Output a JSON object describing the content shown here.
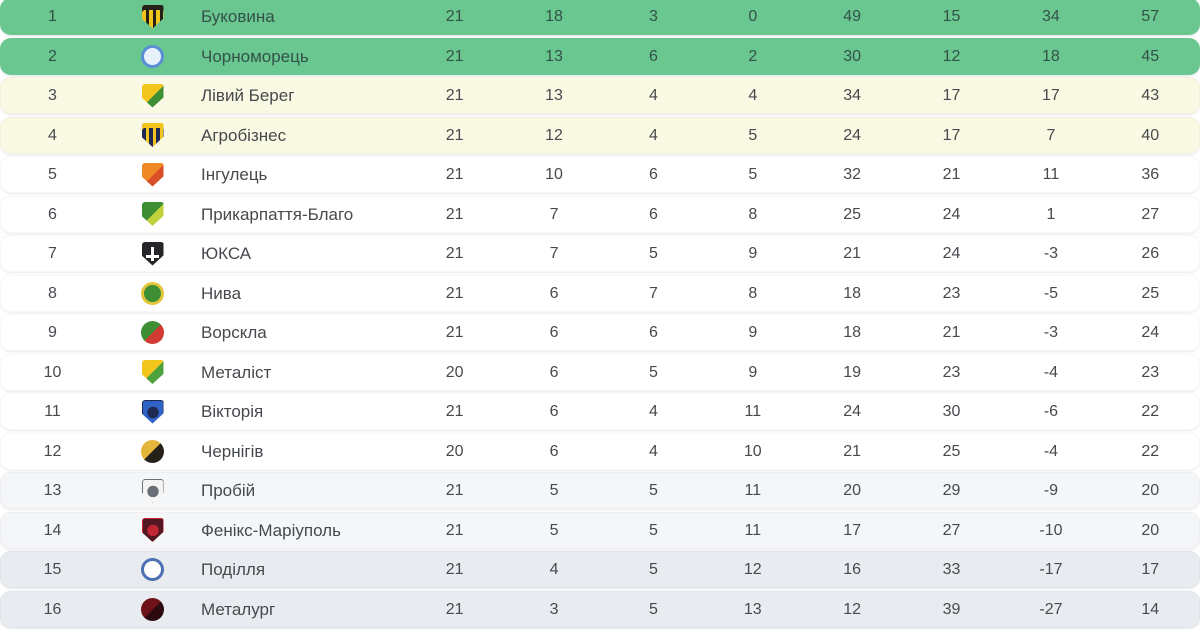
{
  "widget": {
    "name": "league-standings-table",
    "zone_colors": {
      "promotion": "#6AC78F",
      "playoff": "#FAF9E4",
      "mid": "#FFFFFF",
      "lower": "#F5F6F8",
      "relegation": "#E8EBF0"
    },
    "columns": [
      "position",
      "crest",
      "team",
      "played",
      "wins",
      "draws",
      "losses",
      "goals_for",
      "goals_against",
      "goal_difference",
      "points"
    ]
  },
  "table": {
    "rows": [
      {
        "position": "1",
        "team": "Буковина",
        "played": "21",
        "wins": "18",
        "draws": "3",
        "losses": "0",
        "gf": "49",
        "ga": "15",
        "gd": "34",
        "points": "57",
        "zone": "promotion",
        "crest": {
          "name": "bukovyna-crest",
          "shape": "shield",
          "pattern": "stripes",
          "colors": [
            "#F2C51D",
            "#26221A"
          ]
        }
      },
      {
        "position": "2",
        "team": "Чорноморець",
        "played": "21",
        "wins": "13",
        "draws": "6",
        "losses": "2",
        "gf": "30",
        "ga": "12",
        "gd": "18",
        "points": "45",
        "zone": "promotion",
        "crest": {
          "name": "chornomorets-crest",
          "shape": "circle",
          "pattern": "ring",
          "colors": [
            "#E9F2FC",
            "#5B8FD6"
          ]
        }
      },
      {
        "position": "3",
        "team": "Лівий Берег",
        "played": "21",
        "wins": "13",
        "draws": "4",
        "losses": "4",
        "gf": "34",
        "ga": "17",
        "gd": "17",
        "points": "43",
        "zone": "playoff",
        "crest": {
          "name": "livyi-bereh-crest",
          "shape": "shield",
          "pattern": "split",
          "colors": [
            "#F2C51D",
            "#3E8F34"
          ]
        }
      },
      {
        "position": "4",
        "team": "Агробізнес",
        "played": "21",
        "wins": "12",
        "draws": "4",
        "losses": "5",
        "gf": "24",
        "ga": "17",
        "gd": "7",
        "points": "40",
        "zone": "playoff",
        "crest": {
          "name": "ahrobiznes-crest",
          "shape": "shield",
          "pattern": "stripes",
          "colors": [
            "#1E2A52",
            "#F2C51D"
          ]
        }
      },
      {
        "position": "5",
        "team": "Інгулець",
        "played": "21",
        "wins": "10",
        "draws": "6",
        "losses": "5",
        "gf": "32",
        "ga": "21",
        "gd": "11",
        "points": "36",
        "zone": "mid",
        "crest": {
          "name": "inhulets-crest",
          "shape": "shield",
          "pattern": "split",
          "colors": [
            "#F08A24",
            "#D94F2A"
          ]
        }
      },
      {
        "position": "6",
        "team": "Прикарпаття-Благо",
        "played": "21",
        "wins": "7",
        "draws": "6",
        "losses": "8",
        "gf": "25",
        "ga": "24",
        "gd": "1",
        "points": "27",
        "zone": "mid",
        "crest": {
          "name": "prykarpattia-crest",
          "shape": "shield",
          "pattern": "split",
          "colors": [
            "#3E8F34",
            "#BFD23E"
          ]
        }
      },
      {
        "position": "7",
        "team": "ЮКСА",
        "played": "21",
        "wins": "7",
        "draws": "5",
        "losses": "9",
        "gf": "21",
        "ga": "24",
        "gd": "-3",
        "points": "26",
        "zone": "mid",
        "crest": {
          "name": "yuksa-crest",
          "shape": "shield",
          "pattern": "cross",
          "colors": [
            "#26262A",
            "#FFFFFF"
          ]
        }
      },
      {
        "position": "8",
        "team": "Нива",
        "played": "21",
        "wins": "6",
        "draws": "7",
        "losses": "8",
        "gf": "18",
        "ga": "23",
        "gd": "-5",
        "points": "25",
        "zone": "mid",
        "crest": {
          "name": "nyva-crest",
          "shape": "circle",
          "pattern": "ring",
          "colors": [
            "#3E8F34",
            "#E3C53B"
          ]
        }
      },
      {
        "position": "9",
        "team": "Ворскла",
        "played": "21",
        "wins": "6",
        "draws": "6",
        "losses": "9",
        "gf": "18",
        "ga": "21",
        "gd": "-3",
        "points": "24",
        "zone": "mid",
        "crest": {
          "name": "vorskla-crest",
          "shape": "circle",
          "pattern": "split",
          "colors": [
            "#3E8F34",
            "#D23B33"
          ]
        }
      },
      {
        "position": "10",
        "team": "Металіст",
        "played": "20",
        "wins": "6",
        "draws": "5",
        "losses": "9",
        "gf": "19",
        "ga": "23",
        "gd": "-4",
        "points": "23",
        "zone": "mid",
        "crest": {
          "name": "metalist-crest",
          "shape": "shield",
          "pattern": "split",
          "colors": [
            "#F2C51D",
            "#4EA23C"
          ]
        }
      },
      {
        "position": "11",
        "team": "Вікторія",
        "played": "21",
        "wins": "6",
        "draws": "4",
        "losses": "11",
        "gf": "24",
        "ga": "30",
        "gd": "-6",
        "points": "22",
        "zone": "mid",
        "crest": {
          "name": "viktoriia-crest",
          "shape": "shield",
          "pattern": "solid",
          "colors": [
            "#2F62C4",
            "#1E2A52"
          ]
        }
      },
      {
        "position": "12",
        "team": "Чернігів",
        "played": "20",
        "wins": "6",
        "draws": "4",
        "losses": "10",
        "gf": "21",
        "ga": "25",
        "gd": "-4",
        "points": "22",
        "zone": "mid",
        "crest": {
          "name": "chernihiv-crest",
          "shape": "circle",
          "pattern": "split",
          "colors": [
            "#E3B53B",
            "#26221A"
          ]
        }
      },
      {
        "position": "13",
        "team": "Пробій",
        "played": "21",
        "wins": "5",
        "draws": "5",
        "losses": "11",
        "gf": "20",
        "ga": "29",
        "gd": "-9",
        "points": "20",
        "zone": "lower",
        "crest": {
          "name": "probii-crest",
          "shape": "shield",
          "pattern": "solid",
          "colors": [
            "#F4F4F4",
            "#6A6F76"
          ]
        }
      },
      {
        "position": "14",
        "team": "Фенікс-Маріуполь",
        "played": "21",
        "wins": "5",
        "draws": "5",
        "losses": "11",
        "gf": "17",
        "ga": "27",
        "gd": "-10",
        "points": "20",
        "zone": "lower",
        "crest": {
          "name": "feniks-mariupol-crest",
          "shape": "shield",
          "pattern": "solid",
          "colors": [
            "#531722",
            "#C22533"
          ]
        }
      },
      {
        "position": "15",
        "team": "Поділля",
        "played": "21",
        "wins": "4",
        "draws": "5",
        "losses": "12",
        "gf": "16",
        "ga": "33",
        "gd": "-17",
        "points": "17",
        "zone": "relegation",
        "crest": {
          "name": "podillia-crest",
          "shape": "circle",
          "pattern": "ring",
          "colors": [
            "#FDFDFD",
            "#4D6FB4"
          ]
        }
      },
      {
        "position": "16",
        "team": "Металург",
        "played": "21",
        "wins": "3",
        "draws": "5",
        "losses": "13",
        "gf": "12",
        "ga": "39",
        "gd": "-27",
        "points": "14",
        "zone": "relegation",
        "crest": {
          "name": "metalurh-crest",
          "shape": "circle",
          "pattern": "split",
          "colors": [
            "#6E1118",
            "#2B0B10"
          ]
        }
      }
    ]
  }
}
